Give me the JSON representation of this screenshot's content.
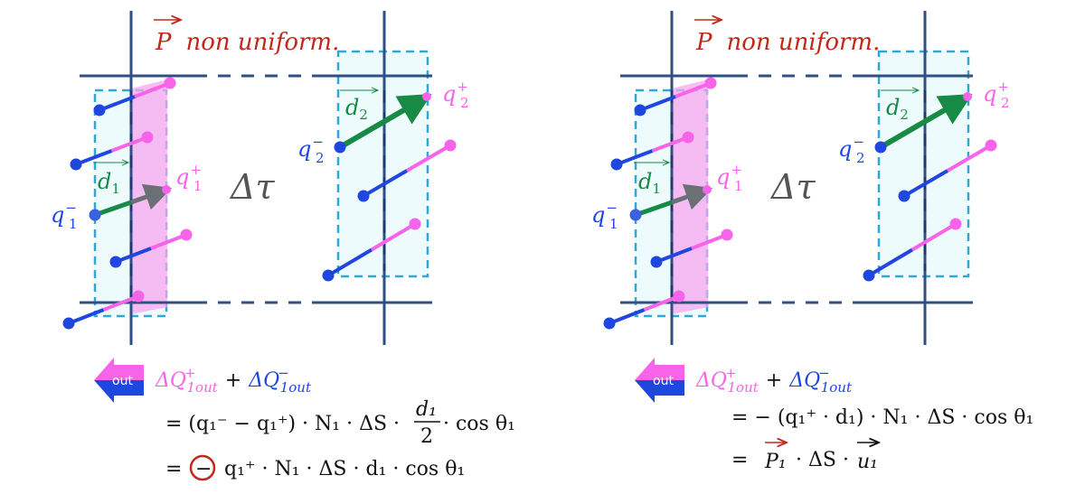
{
  "colors": {
    "blue": "#1f47e0",
    "pink": "#f763e9",
    "green": "#178a45",
    "red": "#c0281b",
    "grid": "#2f4f86",
    "cyan": "#2fa8d8",
    "gray": "#5e6469"
  },
  "panels": [
    {
      "title": "P non uniform.",
      "vec": "P",
      "title_rest": "non uniform.",
      "tau": "Δτ",
      "q1m": "q",
      "q1m_sub": "1",
      "q1m_sup": "−",
      "q1p": "q",
      "q1p_sub": "1",
      "q1p_sup": "+",
      "q2m": "q",
      "q2m_sub": "2",
      "q2m_sup": "−",
      "q2p": "q",
      "q2p_sub": "2",
      "q2p_sup": "+",
      "d1": "d",
      "d1_sub": "1",
      "d2": "d",
      "d2_sub": "2",
      "out_label": "out",
      "lhs_a": "ΔQ",
      "lhs_a_sup": "+",
      "lhs_a_sub": "1out",
      "plus": "+",
      "lhs_b": "ΔQ",
      "lhs_b_sup": "−",
      "lhs_b_sub": "1out",
      "eq1": "= (q₁⁻ − q₁⁺) · N₁ · ΔS · ",
      "frac_num": "d₁",
      "frac_den": "2",
      "eq1_tail": " · cos θ₁",
      "eq2_pre": "=",
      "eq2_circled": "−",
      "eq2": "q₁⁺ · N₁ · ΔS · d₁ · cos θ₁"
    },
    {
      "title": "P non uniform.",
      "vec": "P",
      "title_rest": "non uniform.",
      "tau": "Δτ",
      "q1m": "q",
      "q1m_sub": "1",
      "q1m_sup": "−",
      "q1p": "q",
      "q1p_sub": "1",
      "q1p_sup": "+",
      "q2m": "q",
      "q2m_sub": "2",
      "q2m_sup": "−",
      "q2p": "q",
      "q2p_sub": "2",
      "q2p_sup": "+",
      "d1": "d",
      "d1_sub": "1",
      "d2": "d",
      "d2_sub": "2",
      "out_label": "out",
      "lhs_a": "ΔQ",
      "lhs_a_sup": "+",
      "lhs_a_sub": "1out",
      "plus": "+",
      "lhs_b": "ΔQ",
      "lhs_b_sup": "−",
      "lhs_b_sub": "1out",
      "eq1": "= −  (q₁⁺ · d₁) · N₁ · ΔS · cos θ₁",
      "eq2_pre": "=",
      "eq2_vec": "P₁",
      "eq2": "· ΔS ·",
      "eq2_vec2": "u₁"
    }
  ]
}
